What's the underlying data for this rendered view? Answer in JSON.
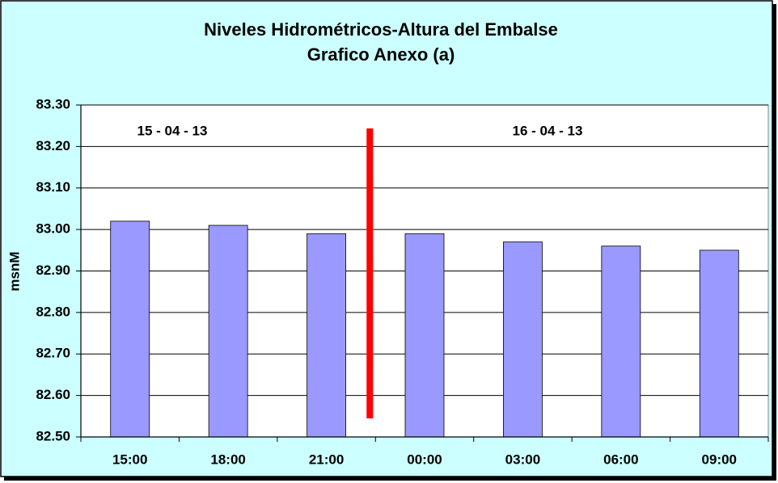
{
  "chart_data": {
    "type": "bar",
    "title": "Niveles Hidrométricos-Altura del Embalse",
    "subtitle": "Grafico Anexo (a)",
    "y_label": "msnM",
    "annotations": [
      "15 - 04 - 13",
      "16 - 04 - 13"
    ],
    "categories": [
      "15:00",
      "18:00",
      "21:00",
      "00:00",
      "03:00",
      "06:00",
      "09:00"
    ],
    "values": [
      83.02,
      83.01,
      82.99,
      82.99,
      82.97,
      82.96,
      82.95
    ],
    "color": "#9999ff",
    "ylim": [
      82.5,
      83.3
    ],
    "yticks": [
      {
        "value": 82.5,
        "label": "82.50"
      },
      {
        "value": 82.6,
        "label": "82.60"
      },
      {
        "value": 82.7,
        "label": "82.70"
      },
      {
        "value": 82.8,
        "label": "82.80"
      },
      {
        "value": 82.9,
        "label": "82.90"
      },
      {
        "value": 83.0,
        "label": "83.00"
      },
      {
        "value": 83.1,
        "label": "83.10"
      },
      {
        "value": 83.2,
        "label": "83.20"
      },
      {
        "value": 83.3,
        "label": "83.30"
      }
    ],
    "grid": true
  }
}
